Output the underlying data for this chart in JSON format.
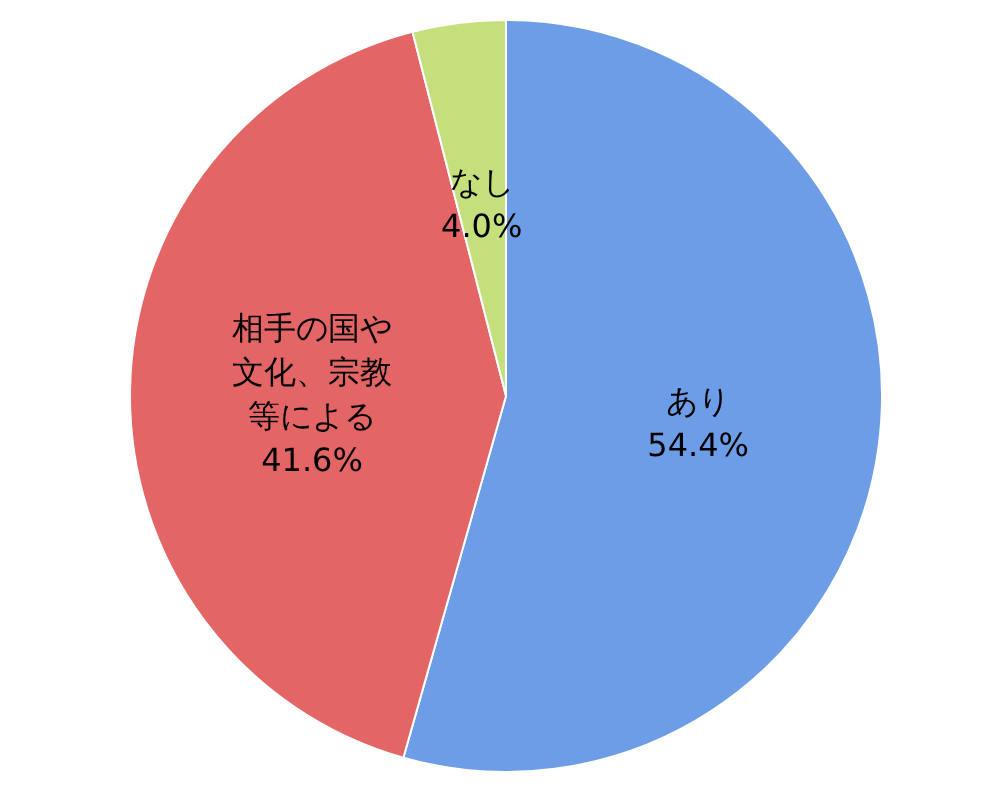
{
  "chart_data": {
    "type": "pie",
    "categories": [
      "あり",
      "相手の国や文化、宗教等による",
      "なし"
    ],
    "values": [
      54.4,
      41.6,
      4.0
    ],
    "colors": [
      "#6d9de6",
      "#e46565",
      "#c5df7c"
    ],
    "value_labels": [
      "54.4%",
      "41.6%",
      "4.0%"
    ],
    "legend": false
  }
}
